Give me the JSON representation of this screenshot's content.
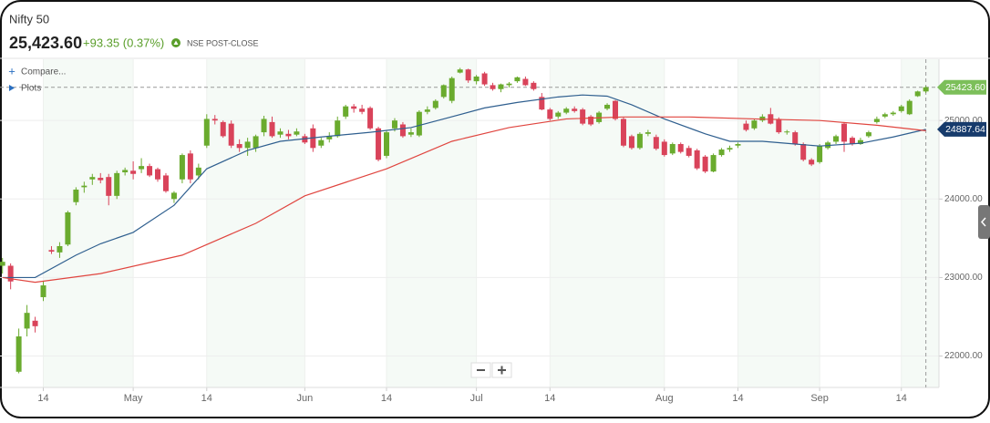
{
  "header": {
    "title": "Nifty 50",
    "price": "25,423.60",
    "change": "+93.35 (0.37%)",
    "status": "NSE POST-CLOSE"
  },
  "toolbar": {
    "compare": "Compare...",
    "plots": "Plots"
  },
  "chart_data": {
    "type": "candlestick",
    "up_color": "#6aab2e",
    "down_color": "#d9435a",
    "ylim": [
      21600,
      25780
    ],
    "yticks": [
      {
        "value": 22000,
        "label": "22000.00"
      },
      {
        "value": 23000,
        "label": "23000.00"
      },
      {
        "value": 24000,
        "label": "24000.00"
      },
      {
        "value": 25000,
        "label": "25000.00"
      }
    ],
    "xlim": [
      -0.3,
      114.6
    ],
    "xticks": [
      {
        "value": 5,
        "label": "14"
      },
      {
        "value": 16,
        "label": "May"
      },
      {
        "value": 25,
        "label": "14"
      },
      {
        "value": 37,
        "label": "Jun"
      },
      {
        "value": 47,
        "label": "14"
      },
      {
        "value": 58,
        "label": "Jul"
      },
      {
        "value": 67,
        "label": "14"
      },
      {
        "value": 81,
        "label": "Aug"
      },
      {
        "value": 90,
        "label": "14"
      },
      {
        "value": 100,
        "label": "Sep"
      },
      {
        "value": 110,
        "label": "14"
      }
    ],
    "grid": true,
    "ohlc": [
      [
        23150,
        23250,
        23050,
        23200
      ],
      [
        23150,
        23180,
        22850,
        22950
      ],
      [
        21800,
        22350,
        21780,
        22250
      ],
      [
        22350,
        22650,
        22250,
        22550
      ],
      [
        22450,
        22500,
        22300,
        22380
      ],
      [
        22750,
        22950,
        22700,
        22900
      ],
      [
        23350,
        23400,
        23300,
        23330
      ],
      [
        23320,
        23450,
        23250,
        23400
      ],
      [
        23420,
        23850,
        23400,
        23830
      ],
      [
        23960,
        24150,
        23920,
        24120
      ],
      [
        24150,
        24220,
        24080,
        24170
      ],
      [
        24250,
        24320,
        24180,
        24280
      ],
      [
        24270,
        24330,
        24200,
        24240
      ],
      [
        24280,
        24320,
        23920,
        24040
      ],
      [
        24040,
        24360,
        24000,
        24330
      ],
      [
        24340,
        24400,
        24300,
        24370
      ],
      [
        24360,
        24480,
        24250,
        24320
      ],
      [
        24380,
        24520,
        24330,
        24420
      ],
      [
        24420,
        24450,
        24280,
        24300
      ],
      [
        24380,
        24400,
        24220,
        24250
      ],
      [
        24300,
        24330,
        24080,
        24100
      ],
      [
        24000,
        24100,
        23950,
        24080
      ],
      [
        24250,
        24580,
        24200,
        24560
      ],
      [
        24580,
        24620,
        24200,
        24250
      ],
      [
        24300,
        24450,
        24250,
        24400
      ],
      [
        24680,
        25080,
        24650,
        25020
      ],
      [
        25020,
        25070,
        24950,
        25000
      ],
      [
        24980,
        25000,
        24780,
        24800
      ],
      [
        24960,
        25000,
        24650,
        24680
      ],
      [
        24700,
        24760,
        24600,
        24650
      ],
      [
        24650,
        24780,
        24550,
        24730
      ],
      [
        24650,
        24820,
        24600,
        24800
      ],
      [
        24850,
        25060,
        24800,
        25020
      ],
      [
        24980,
        25050,
        24780,
        24800
      ],
      [
        24820,
        24900,
        24780,
        24860
      ],
      [
        24830,
        24880,
        24760,
        24800
      ],
      [
        24820,
        24900,
        24800,
        24860
      ],
      [
        24800,
        24830,
        24700,
        24720
      ],
      [
        24900,
        24950,
        24600,
        24650
      ],
      [
        24680,
        24780,
        24650,
        24750
      ],
      [
        24760,
        24850,
        24720,
        24800
      ],
      [
        24800,
        25050,
        24780,
        25000
      ],
      [
        25050,
        25200,
        25020,
        25180
      ],
      [
        25180,
        25210,
        25100,
        25150
      ],
      [
        25150,
        25200,
        25080,
        25110
      ],
      [
        25160,
        25180,
        24880,
        24900
      ],
      [
        24900,
        24920,
        24480,
        24500
      ],
      [
        24550,
        24880,
        24520,
        24850
      ],
      [
        24900,
        25030,
        24860,
        25000
      ],
      [
        24950,
        24980,
        24780,
        24800
      ],
      [
        24820,
        24900,
        24790,
        24850
      ],
      [
        24810,
        25130,
        24790,
        25110
      ],
      [
        25110,
        25180,
        25080,
        25140
      ],
      [
        25160,
        25270,
        25140,
        25250
      ],
      [
        25300,
        25460,
        25280,
        25450
      ],
      [
        25250,
        25560,
        25220,
        25540
      ],
      [
        25610,
        25670,
        25600,
        25650
      ],
      [
        25650,
        25660,
        25480,
        25510
      ],
      [
        25500,
        25580,
        25460,
        25560
      ],
      [
        25600,
        25620,
        25440,
        25460
      ],
      [
        25450,
        25480,
        25380,
        25400
      ],
      [
        25400,
        25470,
        25360,
        25460
      ],
      [
        25450,
        25490,
        25420,
        25470
      ],
      [
        25500,
        25560,
        25480,
        25550
      ],
      [
        25530,
        25560,
        25440,
        25450
      ],
      [
        25480,
        25500,
        25380,
        25400
      ],
      [
        25300,
        25350,
        25130,
        25140
      ],
      [
        25140,
        25160,
        25000,
        25020
      ],
      [
        25050,
        25120,
        25020,
        25100
      ],
      [
        25100,
        25170,
        25080,
        25150
      ],
      [
        25150,
        25180,
        25100,
        25120
      ],
      [
        25140,
        25160,
        24940,
        24960
      ],
      [
        25050,
        25070,
        24930,
        24950
      ],
      [
        24980,
        25120,
        24960,
        25100
      ],
      [
        25150,
        25220,
        25130,
        25200
      ],
      [
        25250,
        25260,
        25000,
        25020
      ],
      [
        25020,
        25040,
        24660,
        24680
      ],
      [
        24800,
        24820,
        24630,
        24650
      ],
      [
        24650,
        24850,
        24630,
        24830
      ],
      [
        24830,
        24880,
        24800,
        24850
      ],
      [
        24790,
        24820,
        24620,
        24640
      ],
      [
        24730,
        24760,
        24540,
        24560
      ],
      [
        24580,
        24720,
        24560,
        24700
      ],
      [
        24700,
        24720,
        24580,
        24600
      ],
      [
        24650,
        24680,
        24530,
        24550
      ],
      [
        24620,
        24640,
        24370,
        24390
      ],
      [
        24540,
        24560,
        24330,
        24350
      ],
      [
        24350,
        24580,
        24340,
        24560
      ],
      [
        24560,
        24650,
        24540,
        24630
      ],
      [
        24630,
        24680,
        24600,
        24650
      ],
      [
        24680,
        24720,
        24650,
        24700
      ],
      [
        24960,
        25000,
        24860,
        24880
      ],
      [
        24900,
        25020,
        24880,
        25000
      ],
      [
        25000,
        25080,
        24980,
        25050
      ],
      [
        25080,
        25160,
        24950,
        24960
      ],
      [
        25020,
        25040,
        24830,
        24850
      ],
      [
        24850,
        24880,
        24820,
        24860
      ],
      [
        24850,
        24870,
        24680,
        24700
      ],
      [
        24700,
        24720,
        24480,
        24500
      ],
      [
        24500,
        24520,
        24420,
        24440
      ],
      [
        24470,
        24700,
        24450,
        24680
      ],
      [
        24650,
        24740,
        24630,
        24720
      ],
      [
        24730,
        24820,
        24700,
        24800
      ],
      [
        24960,
        24980,
        24600,
        24730
      ],
      [
        24780,
        24800,
        24680,
        24700
      ],
      [
        24700,
        24780,
        24690,
        24750
      ],
      [
        24800,
        24870,
        24780,
        24850
      ],
      [
        24980,
        25050,
        24960,
        25020
      ],
      [
        25050,
        25100,
        25030,
        25080
      ],
      [
        25080,
        25120,
        25060,
        25100
      ],
      [
        25120,
        25200,
        25100,
        25180
      ],
      [
        25080,
        25270,
        25070,
        25250
      ],
      [
        25310,
        25380,
        25300,
        25370
      ],
      [
        25370,
        25440,
        25350,
        25423.6
      ]
    ],
    "series": [
      {
        "color": "#2f5f8f",
        "x": [
          0,
          4,
          9,
          12,
          16,
          21,
          25,
          30,
          34,
          39,
          45,
          50,
          54,
          59,
          63,
          68,
          71,
          74,
          77,
          81,
          86,
          89,
          93,
          97,
          100,
          105,
          109,
          113
        ],
        "values": [
          23000,
          23000,
          23285,
          23430,
          23575,
          23920,
          24385,
          24620,
          24735,
          24790,
          24850,
          24910,
          25020,
          25160,
          25230,
          25300,
          25325,
          25310,
          25200,
          25020,
          24830,
          24735,
          24735,
          24700,
          24675,
          24710,
          24790,
          24887.64
        ]
      },
      {
        "color": "#e0453f",
        "x": [
          0,
          4,
          12,
          22,
          31,
          37,
          47,
          55,
          62,
          69,
          76,
          84,
          92,
          100,
          107,
          113
        ],
        "values": [
          23000,
          22940,
          23050,
          23285,
          23690,
          24040,
          24385,
          24735,
          24910,
          25020,
          25045,
          25045,
          25020,
          25000,
          24940,
          24870
        ]
      }
    ],
    "price_tags": [
      {
        "value": 25423.6,
        "label": "25423.60",
        "color": "#7cbf5a"
      },
      {
        "value": 24887.64,
        "label": "24887.64",
        "color": "#173b6c"
      }
    ]
  }
}
